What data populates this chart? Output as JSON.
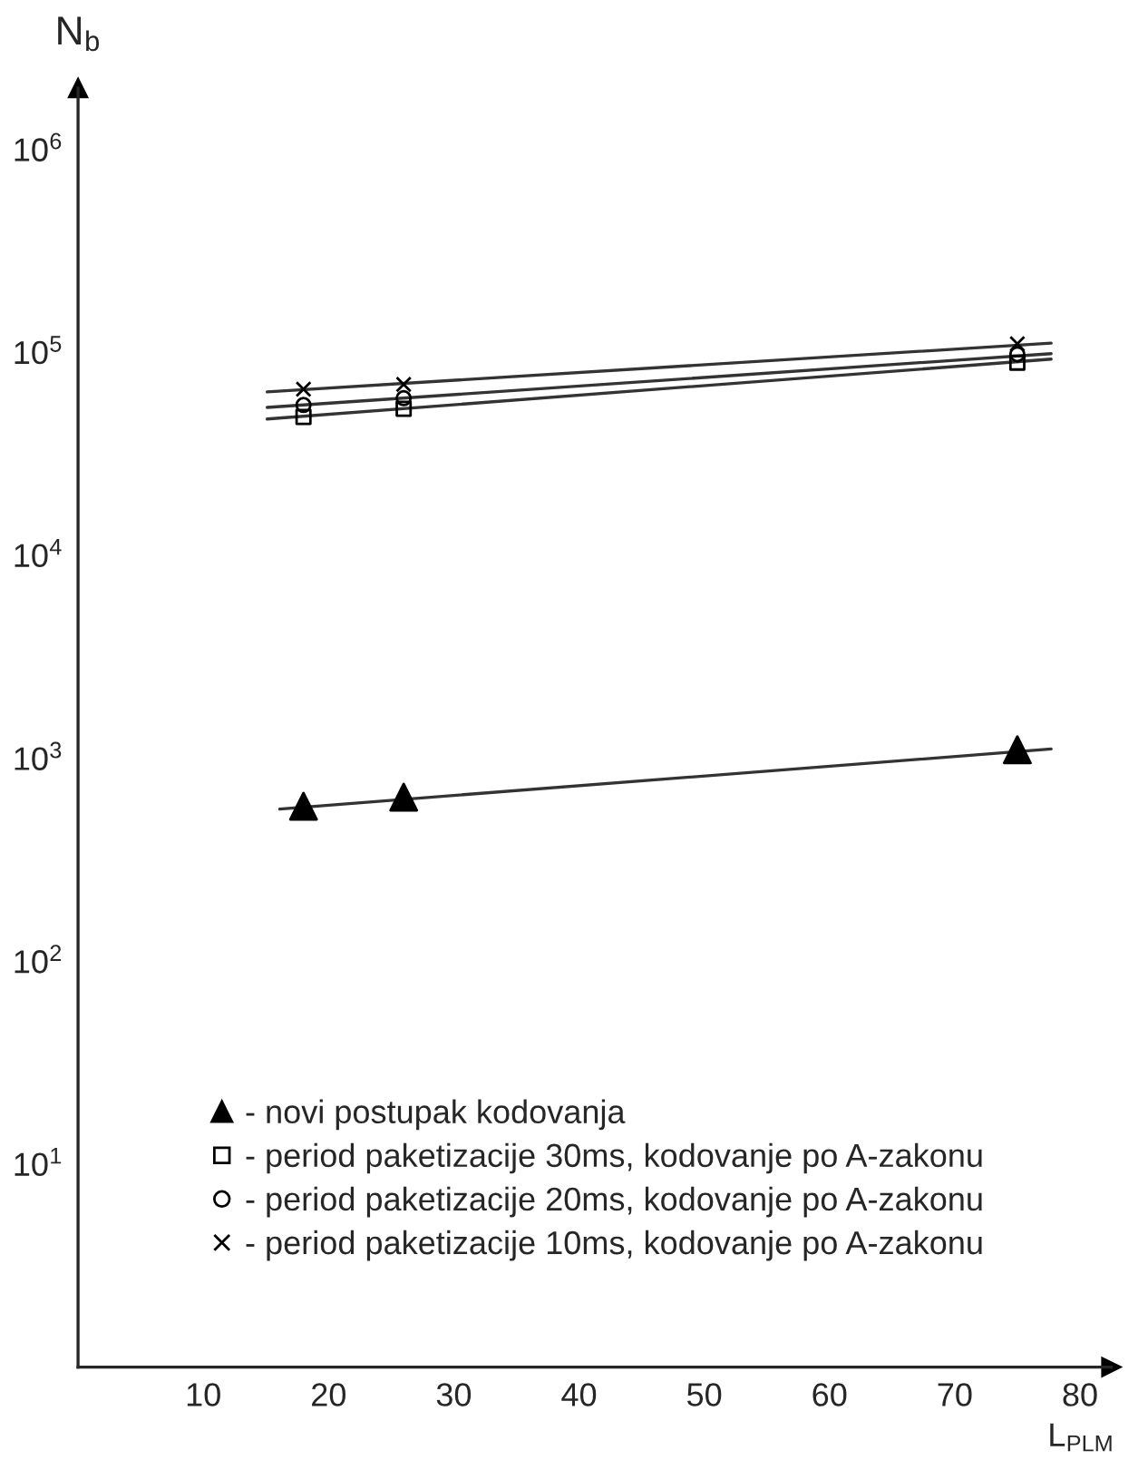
{
  "chart_data": {
    "type": "scatter",
    "xlabel": "L$_{PLM}$",
    "ylabel": "N$_{b}$",
    "log": "y",
    "xlim": [
      0,
      82.5
    ],
    "ylim": [
      1,
      2000000
    ],
    "xticks": [
      10,
      20,
      30,
      40,
      50,
      60,
      70,
      80
    ],
    "yticks": [
      {
        "value": 10,
        "label": "10$^{1}$"
      },
      {
        "value": 100,
        "label": "10$^{2}$"
      },
      {
        "value": 1000,
        "label": "10$^{3}$"
      },
      {
        "value": 10000,
        "label": "10$^{4}$"
      },
      {
        "value": 100000,
        "label": "10$^{5}$"
      },
      {
        "value": 1000000,
        "label": "10$^{6}$"
      }
    ],
    "grid": false,
    "legend": "bottom",
    "series": [
      {
        "name": "- novi postupak kodovanja",
        "marker": "triangle",
        "color": "#000000",
        "x": [
          18,
          26,
          75
        ],
        "values": [
          580,
          643,
          1100
        ]
      },
      {
        "name": "- period paketizacije 30ms, kodovanje po A-zakonu",
        "marker": "square",
        "color": "#000000",
        "x": [
          18,
          26,
          75
        ],
        "values": [
          48000,
          52700,
          88900
        ]
      },
      {
        "name": "- period paketizacije 20ms, kodovanje po A-zakonu",
        "marker": "circle",
        "color": "#000000",
        "x": [
          18,
          26,
          75
        ],
        "values": [
          55000,
          59400,
          97700
        ]
      },
      {
        "name": "- period paketizacije 10ms, kodovanje po A-zakonu",
        "marker": "cross",
        "color": "#000000",
        "x": [
          18,
          26,
          75
        ],
        "values": [
          65800,
          69500,
          110000
        ]
      },
      {
        "type": "line",
        "color": "#333333",
        "x": [
          16.1,
          77.7
        ],
        "values": [
          562,
          1110
        ]
      },
      {
        "type": "line",
        "color": "#333333",
        "x": [
          15.1,
          77.7
        ],
        "values": [
          46900,
          92500
        ]
      },
      {
        "type": "line",
        "color": "#333333",
        "x": [
          15.1,
          77.7
        ],
        "values": [
          53500,
          98400
        ]
      },
      {
        "type": "line",
        "color": "#333333",
        "x": [
          15.1,
          77.7
        ],
        "values": [
          63800,
          110900
        ]
      }
    ]
  }
}
